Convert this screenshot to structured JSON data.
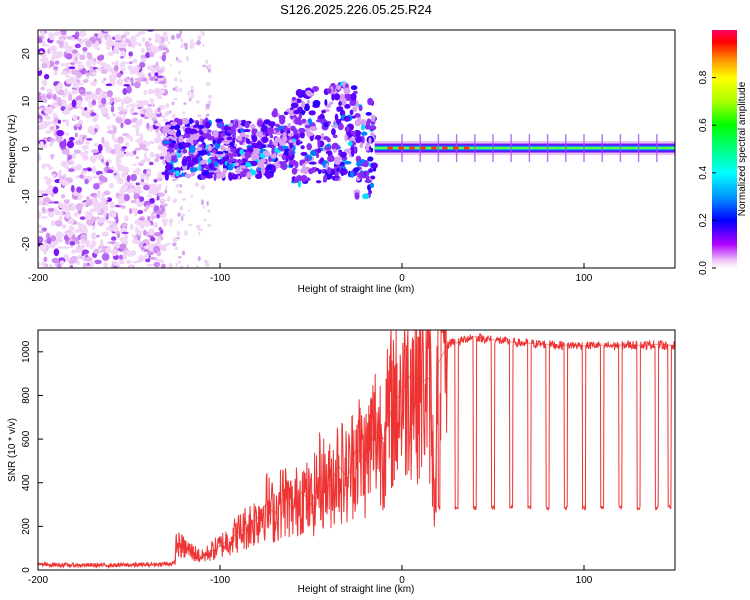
{
  "title": "S126.2025.226.05.25.R24",
  "chart_data": [
    {
      "type": "heatmap",
      "xlabel": "Height of straight line (km)",
      "ylabel": "Frequency (Hz)",
      "xlim": [
        -200,
        150
      ],
      "ylim": [
        -25,
        25
      ],
      "xticks": [
        -200,
        -100,
        0,
        100
      ],
      "xtick_labels": [
        "-200",
        "-100",
        "0",
        "100"
      ],
      "yticks": [
        20,
        10,
        0,
        -10,
        -20
      ],
      "ytick_labels": [
        "20",
        "10",
        "0",
        "-10",
        "-20"
      ],
      "colorbar": {
        "label": "Normalized spectral amplitude",
        "range": [
          0,
          1
        ],
        "ticks": [
          0.0,
          0.2,
          0.4,
          0.6,
          0.8
        ],
        "tick_labels": [
          "0.0",
          "0.2",
          "0.4",
          "0.6",
          "0.8"
        ]
      },
      "features": {
        "noise_region_x": [
          -200,
          -130
        ],
        "transition_region_x": [
          -130,
          -15
        ],
        "coherent_region_x": [
          -15,
          150
        ],
        "carrier_frequency_hz": 0.2
      }
    },
    {
      "type": "line",
      "xlabel": "Height of straight line (km)",
      "ylabel": "SNR (10 * v/v)",
      "xlim": [
        -200,
        150
      ],
      "ylim": [
        0,
        1100
      ],
      "xticks": [
        -200,
        -100,
        0,
        100
      ],
      "xtick_labels": [
        "-200",
        "-100",
        "0",
        "100"
      ],
      "yticks": [
        0,
        200,
        400,
        600,
        800,
        1000
      ],
      "ytick_labels": [
        "0",
        "200",
        "400",
        "600",
        "800",
        "1000"
      ],
      "series": [
        {
          "name": "SNR",
          "color": "#ee3333",
          "x": [
            -200,
            -180,
            -160,
            -140,
            -125,
            -124,
            -110,
            -100,
            -90,
            -80,
            -75,
            -70,
            -65,
            -60,
            -55,
            -50,
            -45,
            -40,
            -35,
            -30,
            -25,
            -20,
            -15,
            -10,
            -5,
            0,
            5,
            10,
            15,
            18,
            20,
            25,
            28,
            30,
            35,
            40,
            45,
            50,
            55,
            60,
            65,
            70,
            75,
            80,
            85,
            90,
            95,
            100,
            105,
            110,
            115,
            120,
            125,
            130,
            135,
            140,
            145,
            150
          ],
          "y": [
            25,
            22,
            22,
            24,
            30,
            120,
            60,
            110,
            170,
            230,
            300,
            260,
            330,
            280,
            360,
            300,
            420,
            380,
            480,
            420,
            560,
            500,
            640,
            600,
            760,
            820,
            900,
            860,
            880,
            320,
            950,
            1030,
            1050,
            1040,
            1060,
            1070,
            1060,
            1055,
            1050,
            1045,
            1040,
            1040,
            1035,
            1035,
            1030,
            1030,
            1030,
            1028,
            1030,
            1030,
            1028,
            1030,
            1032,
            1030,
            1030,
            1035,
            1030,
            1030
          ]
        }
      ],
      "dropouts": {
        "x": [
          20,
          30,
          40,
          50,
          60,
          70,
          80,
          90,
          100,
          110,
          120,
          130,
          140,
          147
        ],
        "value": 285
      }
    }
  ],
  "colors": {
    "snr_line": "#ee3333",
    "axis": "#000000"
  }
}
